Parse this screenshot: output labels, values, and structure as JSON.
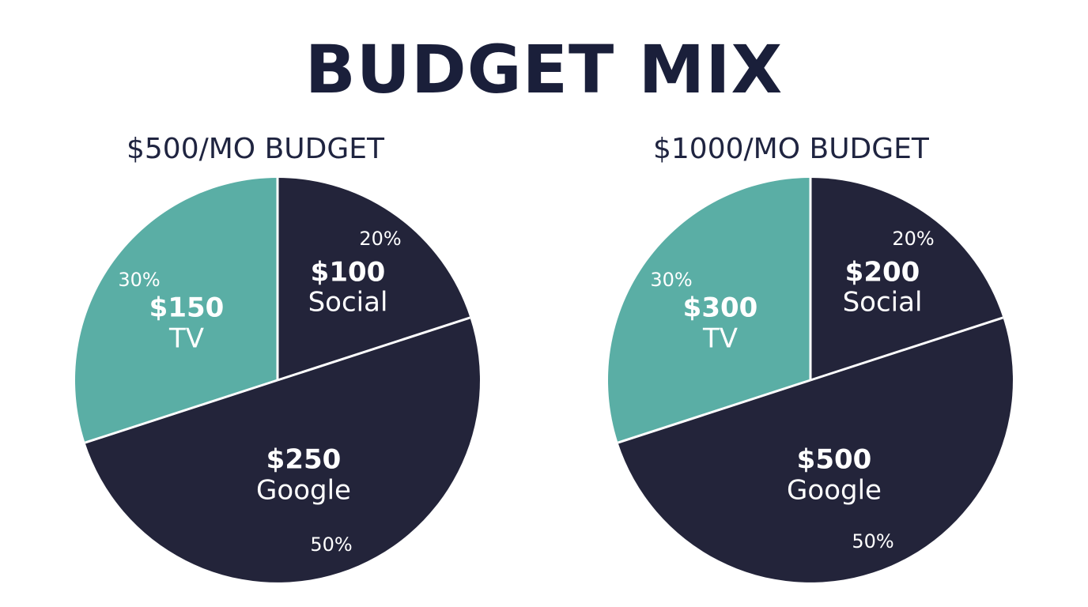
{
  "title": "BUDGET MIX",
  "colors": {
    "dark": "#23243a",
    "teal": "#5aaea5",
    "text_light": "#ffffff",
    "title": "#1a1f3a"
  },
  "chart_data": [
    {
      "type": "pie",
      "title": "$500/MO BUDGET",
      "slices": [
        {
          "label": "Social",
          "amount": "$100",
          "percent": "20%",
          "value": 20,
          "color": "#23243a"
        },
        {
          "label": "Google",
          "amount": "$250",
          "percent": "50%",
          "value": 50,
          "color": "#23243a"
        },
        {
          "label": "TV",
          "amount": "$150",
          "percent": "30%",
          "value": 30,
          "color": "#5aaea5"
        }
      ]
    },
    {
      "type": "pie",
      "title": "$1000/MO BUDGET",
      "slices": [
        {
          "label": "Social",
          "amount": "$200",
          "percent": "20%",
          "value": 20,
          "color": "#23243a"
        },
        {
          "label": "Google",
          "amount": "$500",
          "percent": "50%",
          "value": 50,
          "color": "#23243a"
        },
        {
          "label": "TV",
          "amount": "$300",
          "percent": "30%",
          "value": 30,
          "color": "#5aaea5"
        }
      ]
    }
  ]
}
